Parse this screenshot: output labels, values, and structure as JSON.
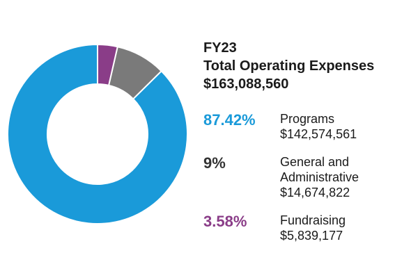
{
  "header": {
    "line1": "FY23",
    "line2": "Total Operating Expenses",
    "line3": "$163,088,560"
  },
  "colors": {
    "programs": "#1a9ad9",
    "general": "#7a7a7a",
    "fundraising": "#8a3d88"
  },
  "rows": [
    {
      "pct": "87.42%",
      "label_lines": [
        "Programs"
      ],
      "amount": "$142,574,561"
    },
    {
      "pct": "9%",
      "label_lines": [
        "General and",
        "Administrative"
      ],
      "amount": "$14,674,822"
    },
    {
      "pct": "3.58%",
      "label_lines": [
        "Fundraising"
      ],
      "amount": "$5,839,177"
    }
  ],
  "chart_data": {
    "type": "pie",
    "donut": true,
    "categories": [
      "Programs",
      "General and Administrative",
      "Fundraising"
    ],
    "values": [
      87.42,
      9,
      3.58
    ],
    "amounts": [
      142574561,
      14674822,
      5839177
    ],
    "start": "top",
    "direction": "counterclockwise",
    "colors": [
      "#1a9ad9",
      "#7a7a7a",
      "#8a3d88"
    ]
  }
}
